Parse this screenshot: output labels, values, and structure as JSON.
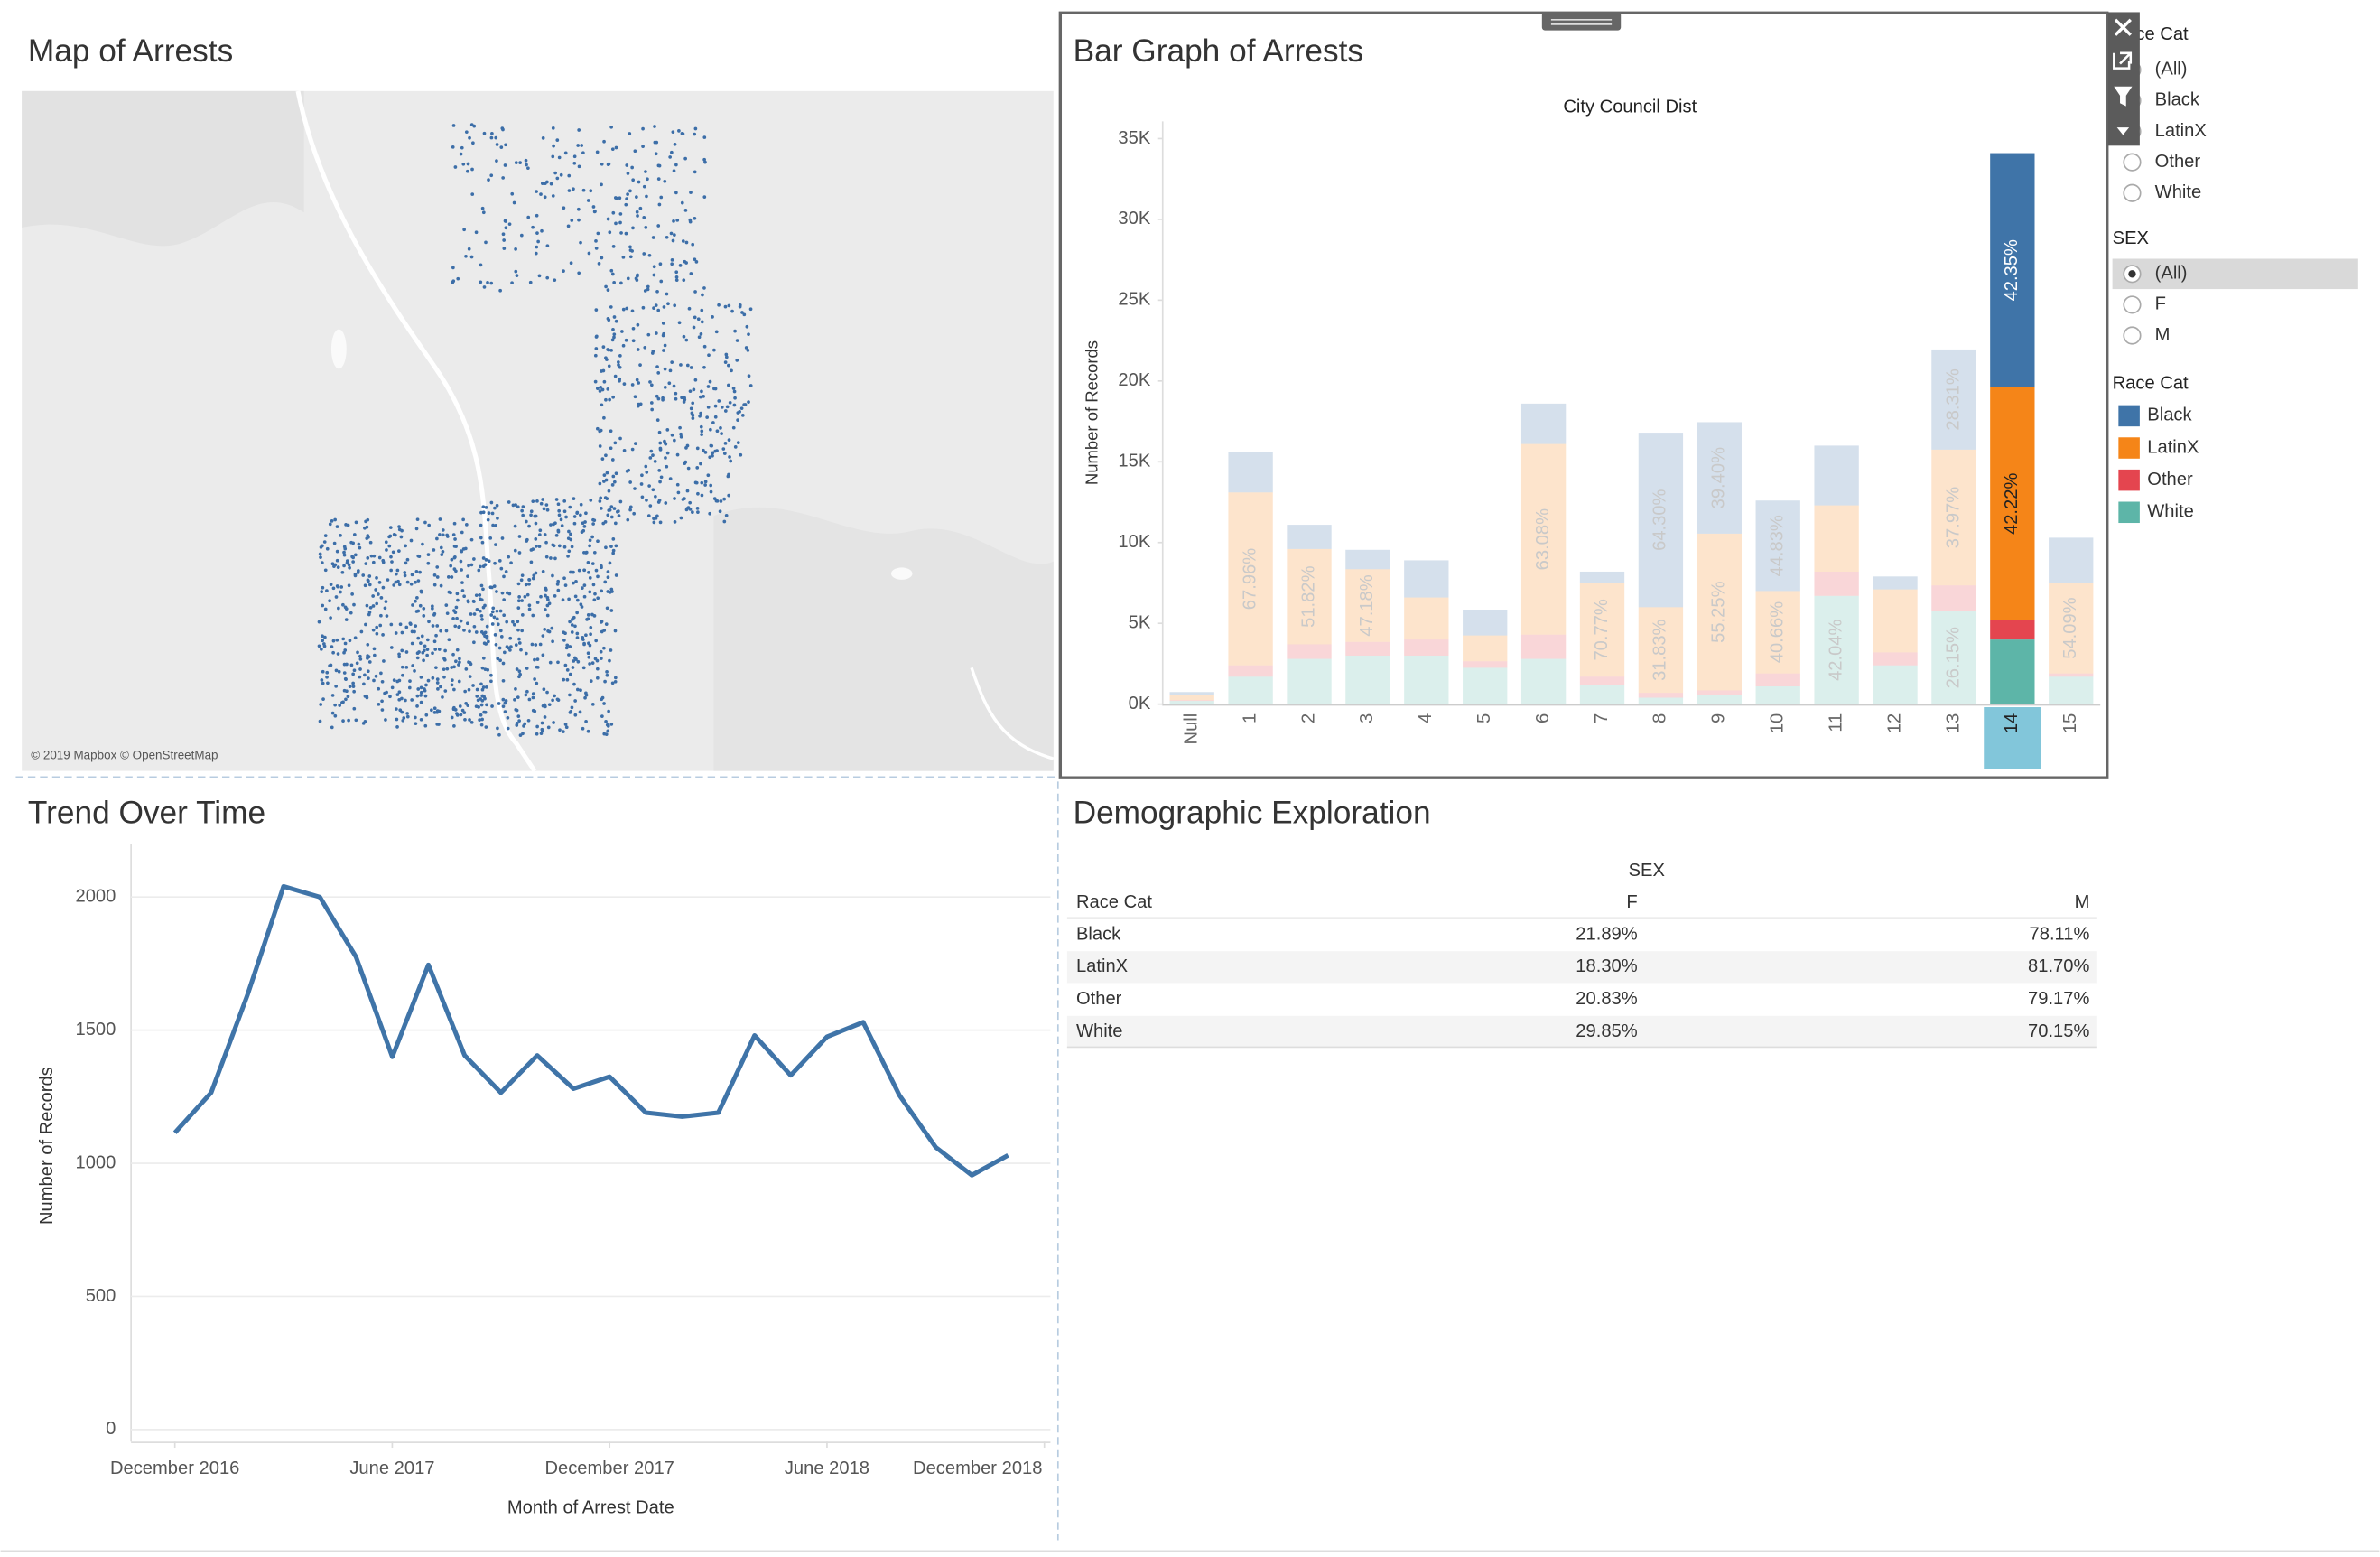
{
  "map": {
    "title": "Map of Arrests",
    "attribution": "© 2019 Mapbox © OpenStreetMap"
  },
  "chart_data": [
    {
      "type": "stacked-bar",
      "title": "Bar Graph of Arrests",
      "x_label": "City Council Dist",
      "y_label": "Number of Records",
      "categories": [
        "Null",
        "1",
        "2",
        "3",
        "4",
        "5",
        "6",
        "7",
        "8",
        "9",
        "10",
        "11",
        "12",
        "13",
        "14",
        "15"
      ],
      "selected_category": "14",
      "series": [
        {
          "name": "Black",
          "color": "#3f74a8",
          "values": [
            200,
            2500,
            1500,
            1200,
            2300,
            1600,
            2500,
            700,
            10800,
            6900,
            5600,
            3700,
            800,
            6200,
            14500,
            2800
          ],
          "percent_labels": [
            null,
            null,
            null,
            null,
            null,
            null,
            null,
            null,
            "64.30%",
            "39.40%",
            "44.83%",
            null,
            null,
            "28.31%",
            "42.35%",
            null
          ]
        },
        {
          "name": "LatinX",
          "color": "#f58518",
          "values": [
            300,
            10700,
            5900,
            4500,
            2600,
            1600,
            11800,
            5800,
            5300,
            9700,
            5100,
            4100,
            3900,
            8400,
            14400,
            5600
          ],
          "percent_labels": [
            null,
            "67.96%",
            "51.82%",
            "47.18%",
            null,
            null,
            "63.08%",
            "70.77%",
            "31.83%",
            "55.25%",
            "40.66%",
            null,
            null,
            "37.97%",
            "42.22%",
            "54.09%"
          ]
        },
        {
          "name": "Other",
          "color": "#e4454f",
          "values": [
            50,
            700,
            900,
            850,
            1000,
            400,
            1500,
            500,
            300,
            300,
            800,
            1500,
            800,
            1600,
            1200,
            200
          ]
        },
        {
          "name": "White",
          "color": "#5db5a8",
          "values": [
            200,
            1700,
            2800,
            3000,
            3000,
            2250,
            2800,
            1200,
            400,
            550,
            1100,
            6700,
            2400,
            5750,
            4000,
            1700
          ],
          "percent_labels": [
            null,
            null,
            null,
            null,
            null,
            null,
            null,
            null,
            null,
            null,
            null,
            "42.04%",
            null,
            "26.15%",
            null,
            null
          ]
        }
      ],
      "ylim": [
        0,
        35500
      ],
      "yticks": [
        {
          "value": 0,
          "label": "0K"
        },
        {
          "value": 5000,
          "label": "5K"
        },
        {
          "value": 10000,
          "label": "10K"
        },
        {
          "value": 15000,
          "label": "15K"
        },
        {
          "value": 20000,
          "label": "20K"
        },
        {
          "value": 25000,
          "label": "25K"
        },
        {
          "value": 30000,
          "label": "30K"
        },
        {
          "value": 35000,
          "label": "35K"
        }
      ],
      "grid": false
    },
    {
      "type": "line",
      "title": "Trend Over Time",
      "x_label": "Month of Arrest Date",
      "y_label": "Number of Records",
      "color": "#3f74a8",
      "x": [
        "2016-12",
        "2017-01",
        "2017-02",
        "2017-03",
        "2017-04",
        "2017-05",
        "2017-06",
        "2017-07",
        "2017-08",
        "2017-09",
        "2017-10",
        "2017-11",
        "2017-12",
        "2018-01",
        "2018-02",
        "2018-03",
        "2018-04",
        "2018-05",
        "2018-06",
        "2018-07",
        "2018-08",
        "2018-09",
        "2018-10",
        "2018-11"
      ],
      "values": [
        1115,
        1265,
        1630,
        2040,
        2000,
        1775,
        1400,
        1745,
        1405,
        1265,
        1405,
        1280,
        1325,
        1190,
        1175,
        1190,
        1480,
        1330,
        1475,
        1530,
        1255,
        1060,
        955,
        1030
      ],
      "xlim": [
        "2016-11",
        "2018-12"
      ],
      "xticks": [
        {
          "value": "2016-12",
          "label": "December 2016"
        },
        {
          "value": "2017-06",
          "label": "June 2017"
        },
        {
          "value": "2017-12",
          "label": "December 2017"
        },
        {
          "value": "2018-06",
          "label": "June 2018"
        },
        {
          "value": "2018-12",
          "label": "December 2018"
        }
      ],
      "ylim": [
        0,
        2200
      ],
      "yticks": [
        0,
        500,
        1000,
        1500,
        2000
      ],
      "grid": true
    }
  ],
  "table": {
    "title": "Demographic Exploration",
    "column_group": "SEX",
    "row_header": "Race Cat",
    "columns": [
      "F",
      "M"
    ],
    "rows": [
      {
        "label": "Black",
        "values": [
          "21.89%",
          "78.11%"
        ]
      },
      {
        "label": "LatinX",
        "values": [
          "18.30%",
          "81.70%"
        ]
      },
      {
        "label": "Other",
        "values": [
          "20.83%",
          "79.17%"
        ]
      },
      {
        "label": "White",
        "values": [
          "29.85%",
          "70.15%"
        ]
      }
    ]
  },
  "filters": [
    {
      "title": "Race Cat",
      "options": [
        "(All)",
        "Black",
        "LatinX",
        "Other",
        "White"
      ]
    },
    {
      "title": "SEX",
      "options": [
        "(All)",
        "F",
        "M"
      ],
      "selected": "(All)"
    }
  ],
  "legend": {
    "title": "Race Cat"
  }
}
